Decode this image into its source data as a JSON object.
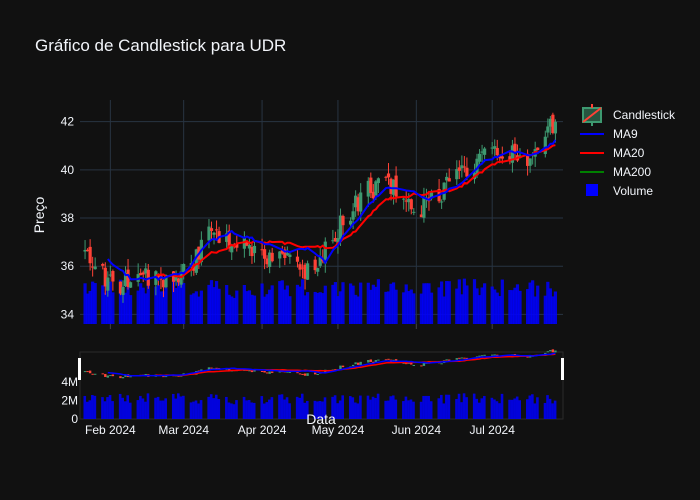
{
  "chart_data": {
    "type": "candlestick",
    "title": "Gráfico de Candlestick para UDR",
    "xlabel": "Data",
    "ylabel": "Preço",
    "ylim": [
      33.6,
      42.9
    ],
    "yticks": [
      "34",
      "36",
      "38",
      "40",
      "42"
    ],
    "xticks": [
      "Feb 2024",
      "Mar 2024",
      "Apr 2024",
      "May 2024",
      "Jun 2024",
      "Jul 2024"
    ],
    "volume_ticks": [
      "0",
      "2M",
      "4M"
    ],
    "grid": true,
    "legend_position": "top-right",
    "legend": [
      "Candlestick",
      "MA9",
      "MA20",
      "MA200",
      "Volume"
    ],
    "colors": {
      "increasing": "#3d9970",
      "decreasing": "#ff4136",
      "ma9": "#0000ff",
      "ma20": "#ff0000",
      "ma200": "#008000",
      "volume": "#0000ff",
      "background": "#111111",
      "grid": "#283442"
    },
    "close_anchors": [
      [
        "2024-01-22",
        36.6
      ],
      [
        "2024-01-29",
        35.6
      ],
      [
        "2024-02-05",
        35.3
      ],
      [
        "2024-02-12",
        35.8
      ],
      [
        "2024-02-19",
        35.5
      ],
      [
        "2024-02-26",
        35.4
      ],
      [
        "2024-03-04",
        36.0
      ],
      [
        "2024-03-11",
        37.6
      ],
      [
        "2024-03-18",
        37.2
      ],
      [
        "2024-03-25",
        37.0
      ],
      [
        "2024-04-01",
        36.5
      ],
      [
        "2024-04-08",
        36.4
      ],
      [
        "2024-04-15",
        35.8
      ],
      [
        "2024-04-22",
        35.8
      ],
      [
        "2024-04-29",
        37.2
      ],
      [
        "2024-05-06",
        38.3
      ],
      [
        "2024-05-13",
        39.2
      ],
      [
        "2024-05-20",
        39.4
      ],
      [
        "2024-05-27",
        38.8
      ],
      [
        "2024-06-03",
        38.4
      ],
      [
        "2024-06-10",
        39.0
      ],
      [
        "2024-06-17",
        39.8
      ],
      [
        "2024-06-24",
        40.3
      ],
      [
        "2024-07-01",
        40.7
      ],
      [
        "2024-07-08",
        40.8
      ],
      [
        "2024-07-15",
        40.5
      ],
      [
        "2024-07-22",
        41.8
      ],
      [
        "2024-07-26",
        41.9
      ]
    ],
    "ma9_anchors": [
      [
        "2024-01-31",
        36.3
      ],
      [
        "2024-02-09",
        35.5
      ],
      [
        "2024-02-20",
        35.5
      ],
      [
        "2024-03-01",
        35.7
      ],
      [
        "2024-03-11",
        37.0
      ],
      [
        "2024-03-20",
        37.4
      ],
      [
        "2024-04-01",
        37.0
      ],
      [
        "2024-04-10",
        36.6
      ],
      [
        "2024-04-19",
        36.7
      ],
      [
        "2024-04-26",
        36.2
      ],
      [
        "2024-05-03",
        37.2
      ],
      [
        "2024-05-13",
        38.5
      ],
      [
        "2024-05-20",
        39.3
      ],
      [
        "2024-05-28",
        39.2
      ],
      [
        "2024-06-06",
        38.8
      ],
      [
        "2024-06-17",
        39.3
      ],
      [
        "2024-06-27",
        40.3
      ],
      [
        "2024-07-08",
        40.8
      ],
      [
        "2024-07-17",
        40.6
      ],
      [
        "2024-07-26",
        41.2
      ]
    ],
    "ma20_anchors": [
      [
        "2024-02-19",
        35.6
      ],
      [
        "2024-03-01",
        35.6
      ],
      [
        "2024-03-11",
        36.5
      ],
      [
        "2024-03-25",
        37.0
      ],
      [
        "2024-04-08",
        37.0
      ],
      [
        "2024-04-19",
        36.8
      ],
      [
        "2024-04-29",
        36.8
      ],
      [
        "2024-05-08",
        37.5
      ],
      [
        "2024-05-20",
        38.8
      ],
      [
        "2024-06-03",
        39.0
      ],
      [
        "2024-06-17",
        39.2
      ],
      [
        "2024-07-01",
        40.2
      ],
      [
        "2024-07-15",
        40.6
      ],
      [
        "2024-07-26",
        41.0
      ]
    ],
    "volume_range": [
      1600000,
      2800000
    ]
  }
}
